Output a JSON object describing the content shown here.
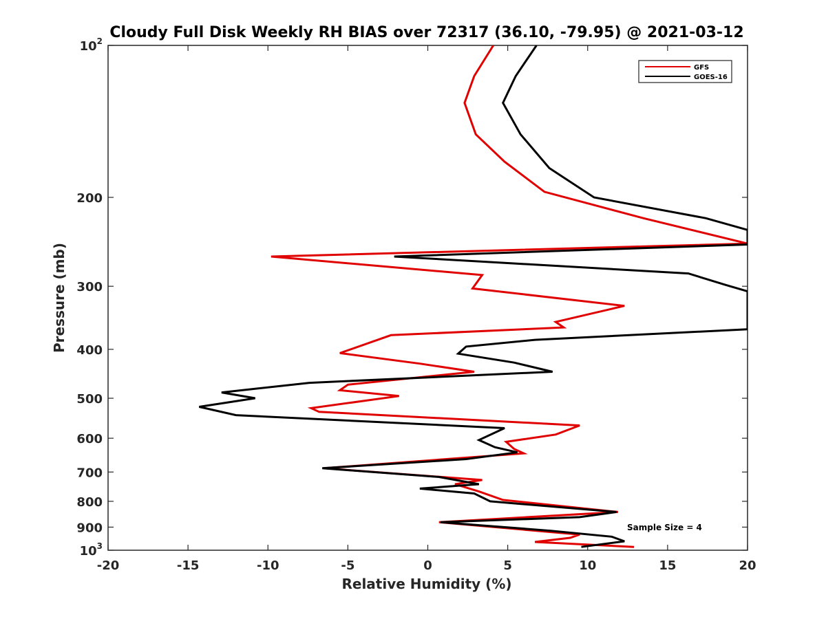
{
  "chart_data": {
    "type": "line",
    "title": "Cloudy Full Disk Weekly RH BIAS over 72317 (36.10, -79.95) @ 2021-03-12",
    "xlabel": "Relative Humidity (%)",
    "ylabel": "Pressure (mb)",
    "xlim": [
      -20,
      20
    ],
    "ylim": [
      1000,
      100
    ],
    "y_scale": "log",
    "y_reversed": true,
    "grid": false,
    "legend_position": "top-right",
    "x_ticks": [
      -20,
      -15,
      -10,
      -5,
      0,
      5,
      10,
      15,
      20
    ],
    "x_tick_labels": [
      "-20",
      "-15",
      "-10",
      "-5",
      "0",
      "5",
      "10",
      "15",
      "20"
    ],
    "y_ticks": [
      {
        "value": 100,
        "base": "10",
        "exp": "2"
      },
      {
        "value": 200,
        "base": "200",
        "exp": ""
      },
      {
        "value": 300,
        "base": "300",
        "exp": ""
      },
      {
        "value": 400,
        "base": "400",
        "exp": ""
      },
      {
        "value": 500,
        "base": "500",
        "exp": ""
      },
      {
        "value": 600,
        "base": "600",
        "exp": ""
      },
      {
        "value": 700,
        "base": "700",
        "exp": ""
      },
      {
        "value": 800,
        "base": "800",
        "exp": ""
      },
      {
        "value": 900,
        "base": "900",
        "exp": ""
      },
      {
        "value": 1000,
        "base": "10",
        "exp": "3"
      }
    ],
    "annotation": "Sample Size = 4",
    "series": [
      {
        "name": "GFS",
        "color": "#e00000",
        "points": [
          [
            4.1,
            100
          ],
          [
            2.9,
            115
          ],
          [
            2.3,
            130
          ],
          [
            3.0,
            150
          ],
          [
            4.8,
            170
          ],
          [
            7.3,
            195
          ],
          [
            13.5,
            220
          ],
          [
            20.0,
            247
          ],
          [
            -9.8,
            262
          ],
          [
            3.4,
            285
          ],
          [
            2.8,
            303
          ],
          [
            12.3,
            328
          ],
          [
            8.0,
            353
          ],
          [
            8.5,
            362
          ],
          [
            -2.3,
            375
          ],
          [
            -5.5,
            407
          ],
          [
            -0.5,
            427
          ],
          [
            2.9,
            443
          ],
          [
            -5.0,
            470
          ],
          [
            -5.5,
            482
          ],
          [
            -1.8,
            495
          ],
          [
            -7.3,
            523
          ],
          [
            -6.8,
            532
          ],
          [
            9.5,
            566
          ],
          [
            8.0,
            590
          ],
          [
            4.9,
            610
          ],
          [
            5.4,
            630
          ],
          [
            6.0,
            643
          ],
          [
            -6.5,
            688
          ],
          [
            3.4,
            726
          ],
          [
            1.7,
            740
          ],
          [
            3.2,
            765
          ],
          [
            4.7,
            795
          ],
          [
            11.9,
            840
          ],
          [
            0.7,
            880
          ],
          [
            9.5,
            931
          ],
          [
            8.9,
            945
          ],
          [
            6.7,
            963
          ],
          [
            12.9,
            985
          ]
        ]
      },
      {
        "name": "GOES-16",
        "color": "#000000",
        "points": [
          [
            6.8,
            100
          ],
          [
            5.5,
            115
          ],
          [
            4.7,
            130
          ],
          [
            5.8,
            150
          ],
          [
            7.6,
            175
          ],
          [
            10.4,
            200
          ],
          [
            17.4,
            220
          ],
          [
            20.0,
            232
          ],
          [
            20.0,
            248
          ],
          [
            -2.1,
            262
          ],
          [
            16.3,
            283
          ],
          [
            18.6,
            298
          ],
          [
            20.0,
            307
          ],
          [
            20.0,
            365
          ],
          [
            6.7,
            383
          ],
          [
            2.4,
            395
          ],
          [
            1.9,
            408
          ],
          [
            5.4,
            425
          ],
          [
            7.8,
            443
          ],
          [
            -7.4,
            466
          ],
          [
            -12.9,
            487
          ],
          [
            -10.8,
            500
          ],
          [
            -14.3,
            520
          ],
          [
            -12.0,
            540
          ],
          [
            4.8,
            573
          ],
          [
            3.2,
            605
          ],
          [
            4.2,
            625
          ],
          [
            5.6,
            640
          ],
          [
            2.4,
            660
          ],
          [
            -6.6,
            688
          ],
          [
            0.7,
            716
          ],
          [
            3.2,
            740
          ],
          [
            -0.5,
            755
          ],
          [
            2.9,
            772
          ],
          [
            3.9,
            800
          ],
          [
            11.8,
            840
          ],
          [
            9.5,
            860
          ],
          [
            0.8,
            880
          ],
          [
            7.7,
            915
          ],
          [
            11.5,
            940
          ],
          [
            12.3,
            960
          ],
          [
            9.6,
            985
          ]
        ]
      }
    ]
  }
}
